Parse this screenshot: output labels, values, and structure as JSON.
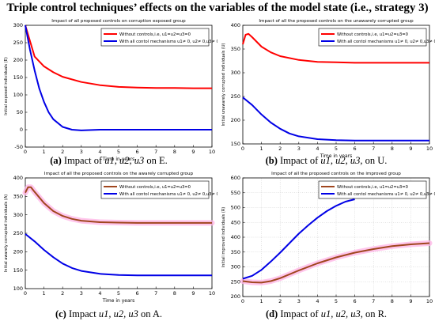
{
  "figure_title": "Triple control techniques’ effects on the variables of the model state (i.e., strategy 3)",
  "colors": {
    "red": "#ff0000",
    "blue": "#0000e6",
    "brown": "#a0461e",
    "pink": "#ffb3e6",
    "frame": "#000000",
    "grid": "#c8c8c8"
  },
  "panels": [
    {
      "caption_label": "(a)",
      "caption_before": "Impact of",
      "caption_vars": "u1, u2, u3",
      "caption_after": "on E."
    },
    {
      "caption_label": "(b)",
      "caption_before": "Impact of",
      "caption_vars": "u1, u2, u3,",
      "caption_after": "on U."
    },
    {
      "caption_label": "(c)",
      "caption_before": "Impact",
      "caption_vars": "u1, u2, u3",
      "caption_after": "on A."
    },
    {
      "caption_label": "(d)",
      "caption_before": "Impact of",
      "caption_vars": "u1, u2, u3,",
      "caption_after": "on R."
    }
  ],
  "chart_data": [
    {
      "type": "line",
      "title": "Impact of all proposed controls on corruption exposed group",
      "xlabel": "Time in years",
      "ylabel": "Initial exposed individuals (E)",
      "xlim": [
        0,
        10
      ],
      "ylim": [
        -50,
        300
      ],
      "xticks": [
        0,
        1,
        2,
        3,
        4,
        5,
        6,
        7,
        8,
        9,
        10
      ],
      "yticks": [
        -50,
        0,
        50,
        100,
        150,
        200,
        250,
        300
      ],
      "grid": false,
      "legend": "top-right",
      "series": [
        {
          "name": "Without controls,i.e, u1=u2=u3=0",
          "color": "red",
          "x": [
            0,
            0.5,
            1,
            1.5,
            2,
            3,
            4,
            5,
            6,
            7,
            8,
            9,
            10
          ],
          "y": [
            300,
            210,
            182,
            165,
            152,
            137,
            128,
            123,
            121,
            120,
            120,
            119,
            119
          ]
        },
        {
          "name": "With all contol mechanisms u1≠ 0, u2≠ 0,u3≠ 0",
          "color": "blue",
          "x": [
            0,
            0.25,
            0.5,
            0.75,
            1,
            1.25,
            1.5,
            2,
            2.5,
            3,
            4,
            5,
            6,
            7,
            8,
            9,
            10
          ],
          "y": [
            300,
            230,
            170,
            118,
            80,
            50,
            30,
            8,
            0,
            -2,
            0,
            0,
            0,
            0,
            0,
            0,
            0
          ]
        }
      ]
    },
    {
      "type": "line",
      "title": "Impact of all the proposed controls on the unawarely corrupted group",
      "xlabel": "Time in years",
      "ylabel": "Initial unawarely corrupted individuals (U)",
      "xlim": [
        0,
        10
      ],
      "ylim": [
        150,
        400
      ],
      "xticks": [
        0,
        1,
        2,
        3,
        4,
        5,
        6,
        7,
        8,
        9,
        10
      ],
      "yticks": [
        150,
        200,
        250,
        300,
        350,
        400
      ],
      "grid": false,
      "legend": "top-right",
      "series": [
        {
          "name": "Without controls,i.e, u1=u2=u3=0",
          "color": "red",
          "x": [
            0,
            0.15,
            0.3,
            0.5,
            1,
            1.5,
            2,
            3,
            4,
            5,
            6,
            7,
            8,
            9,
            10
          ],
          "y": [
            360,
            380,
            382,
            375,
            355,
            343,
            335,
            327,
            323,
            322,
            321,
            321,
            321,
            321,
            321
          ]
        },
        {
          "name": "With all contol mechanisms u1≠ 0, u2≠ 0,u3≠ 0",
          "color": "blue",
          "x": [
            0,
            0.5,
            1,
            1.5,
            2,
            2.5,
            3,
            4,
            5,
            6,
            7,
            8,
            9,
            10
          ],
          "y": [
            248,
            232,
            212,
            195,
            182,
            172,
            166,
            160,
            158,
            157,
            157,
            157,
            157,
            157
          ]
        }
      ]
    },
    {
      "type": "line",
      "title": "Impact of all the proposed controls on the awarely corrupted group",
      "xlabel": "Time in years",
      "ylabel": "Initial awarely corrupted individuals (A)",
      "xlim": [
        0,
        10
      ],
      "ylim": [
        100,
        400
      ],
      "xticks": [
        0,
        1,
        2,
        3,
        4,
        5,
        6,
        7,
        8,
        9,
        10
      ],
      "yticks": [
        100,
        150,
        200,
        250,
        300,
        350,
        400
      ],
      "grid": false,
      "legend": "top-right",
      "series": [
        {
          "name": "Without controls,i.e, u1=u2=u3=0",
          "color": "brown",
          "x": [
            0,
            0.15,
            0.3,
            0.5,
            1,
            1.5,
            2,
            2.5,
            3,
            4,
            5,
            6,
            7,
            8,
            9,
            10
          ],
          "y": [
            360,
            375,
            375,
            362,
            332,
            310,
            297,
            289,
            284,
            280,
            279,
            278,
            278,
            278,
            278,
            278
          ]
        },
        {
          "name": "With all contol mechanisms u1≠ 0, u2≠ 0,u3≠ 0",
          "color": "blue",
          "x": [
            0,
            0.5,
            1,
            1.5,
            2,
            2.5,
            3,
            4,
            5,
            6,
            7,
            8,
            9,
            10
          ],
          "y": [
            248,
            228,
            205,
            185,
            168,
            156,
            148,
            140,
            137,
            136,
            136,
            136,
            136,
            136
          ]
        }
      ]
    },
    {
      "type": "line",
      "title": "Impact of all the proposed controls on the improved group",
      "xlabel": "Time in years",
      "ylabel": "Initial improved individuals (R)",
      "xlim": [
        0,
        10
      ],
      "ylim": [
        200,
        600
      ],
      "xticks": [
        0,
        1,
        2,
        3,
        4,
        5,
        6,
        7,
        8,
        9,
        10
      ],
      "yticks": [
        200,
        250,
        300,
        350,
        400,
        450,
        500,
        550,
        600
      ],
      "grid": true,
      "legend": "top-right",
      "series": [
        {
          "name": "Without controls,i.e, u1=u2=u3=0",
          "color": "brown",
          "x": [
            0,
            0.5,
            1,
            1.5,
            2,
            3,
            4,
            5,
            6,
            7,
            8,
            9,
            10
          ],
          "y": [
            252,
            248,
            247,
            252,
            262,
            288,
            312,
            332,
            348,
            360,
            370,
            376,
            380
          ]
        },
        {
          "name": "With all contol mechanisms u1≠ 0, u2≠ 0,u3≠ 0",
          "color": "blue",
          "x": [
            0,
            0.5,
            1,
            1.5,
            2,
            2.5,
            3,
            3.5,
            4,
            4.5,
            5,
            5.5,
            6
          ],
          "y": [
            260,
            270,
            290,
            318,
            348,
            380,
            412,
            440,
            466,
            488,
            506,
            520,
            528
          ]
        }
      ]
    }
  ]
}
